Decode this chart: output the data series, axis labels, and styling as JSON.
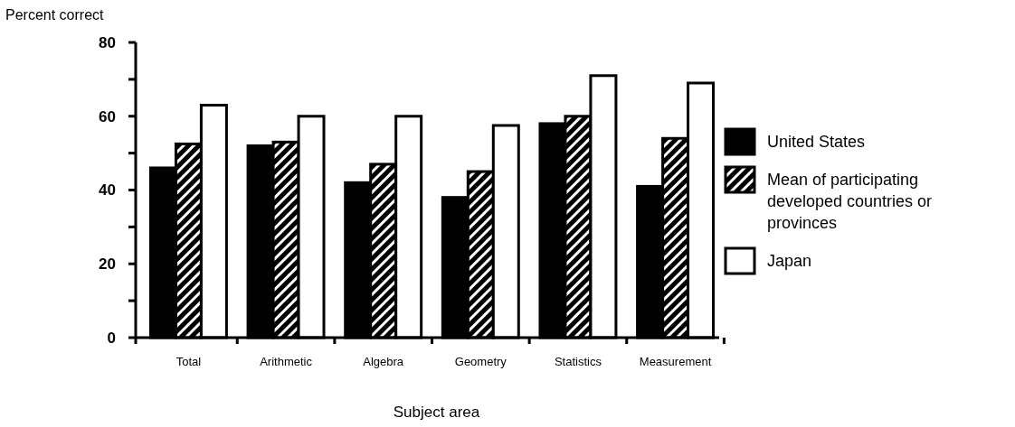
{
  "chart_data": {
    "type": "bar",
    "xlabel": "Subject area",
    "ylabel": "Percent correct",
    "categories": [
      "Total",
      "Arithmetic",
      "Algebra",
      "Geometry",
      "Statistics",
      "Measurement"
    ],
    "series": [
      {
        "name": "United States",
        "color": "#000000",
        "values": [
          46,
          52,
          42,
          38,
          58,
          41
        ]
      },
      {
        "name": "Mean of participating developed countries or provinces",
        "color": "#000000",
        "values": [
          52.5,
          53,
          47,
          45,
          60,
          54
        ]
      },
      {
        "name": "Japan",
        "color": "#ffffff",
        "values": [
          63,
          60,
          60,
          57.5,
          71,
          69
        ]
      }
    ],
    "ylim": [
      0,
      80
    ],
    "yticks": [
      0,
      {
        "value": 10,
        "label": null
      },
      20,
      {
        "value": 30,
        "label": null
      },
      40,
      {
        "value": 50,
        "label": null
      },
      60,
      {
        "value": 70,
        "label": null
      },
      80
    ],
    "grid": false,
    "legend": "right"
  }
}
